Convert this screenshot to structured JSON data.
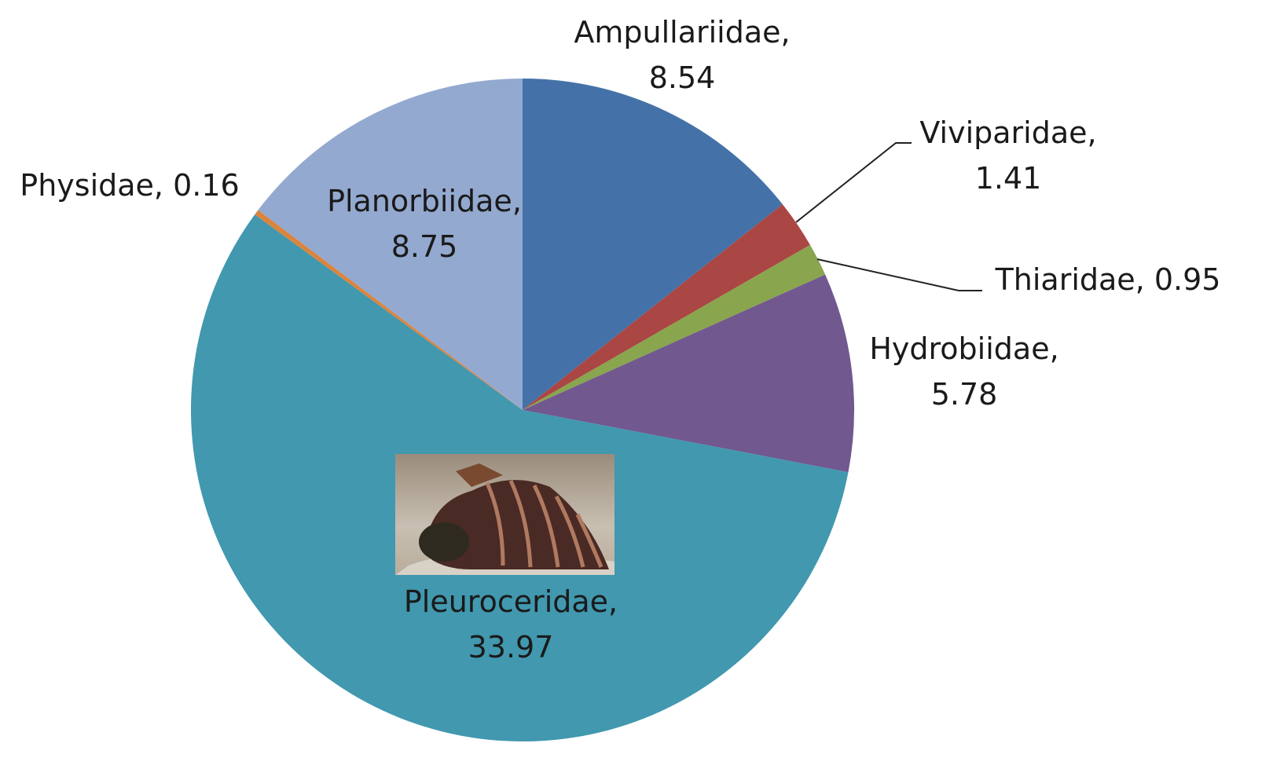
{
  "chart_data": {
    "type": "pie",
    "values": [
      8.54,
      1.41,
      0.95,
      5.78,
      33.97,
      0.16,
      8.75
    ],
    "value_labels": [
      "Ampullariidae, 8.54",
      "Viviparidae, 1.41",
      "Thiaridae, 0.95",
      "Hydrobiidae, 5.78",
      "Pleuroceridae, 33.97",
      "Physidae, 0.16",
      "Planorbiidae, 8.75"
    ],
    "colors": [
      "#4472a8",
      "#aa4643",
      "#89a54e",
      "#71588f",
      "#4198af",
      "#db843d",
      "#93a9cf"
    ],
    "start_angle": 0,
    "direction": "clockwise"
  }
}
